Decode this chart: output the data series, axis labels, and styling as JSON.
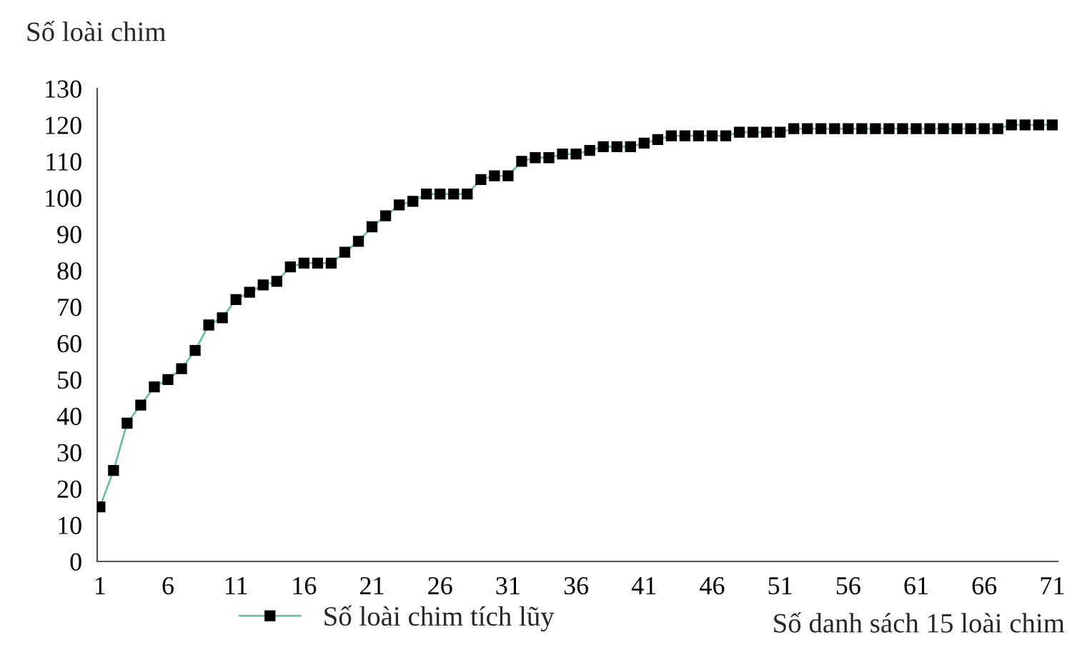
{
  "chart_data": {
    "type": "line",
    "ylabel": "Số loài chim",
    "xlabel": "Số danh sách 15 loài chim",
    "categories": [
      "1",
      null,
      null,
      null,
      null,
      "6",
      null,
      null,
      null,
      null,
      "11",
      null,
      null,
      null,
      null,
      "16",
      null,
      null,
      null,
      null,
      "21",
      null,
      null,
      null,
      null,
      "26",
      null,
      null,
      null,
      null,
      "31",
      null,
      null,
      null,
      null,
      "36",
      null,
      null,
      null,
      null,
      "41",
      null,
      null,
      null,
      null,
      "46",
      null,
      null,
      null,
      null,
      "51",
      null,
      null,
      null,
      null,
      "56",
      null,
      null,
      null,
      null,
      "61",
      null,
      null,
      null,
      null,
      "66",
      null,
      null,
      null,
      null,
      "71"
    ],
    "series": [
      {
        "name": "Số loài chim tích lũy",
        "color": "#6fbf9f",
        "values": [
          15,
          25,
          38,
          43,
          48,
          50,
          53,
          58,
          65,
          67,
          72,
          74,
          76,
          77,
          81,
          82,
          82,
          82,
          85,
          88,
          92,
          95,
          98,
          99,
          101,
          101,
          101,
          101,
          105,
          106,
          106,
          110,
          111,
          111,
          112,
          112,
          113,
          114,
          114,
          114,
          115,
          116,
          117,
          117,
          117,
          117,
          117,
          118,
          118,
          118,
          118,
          119,
          119,
          119,
          119,
          119,
          119,
          119,
          119,
          119,
          119,
          119,
          119,
          119,
          119,
          119,
          119,
          120,
          120,
          120,
          120
        ]
      }
    ],
    "ylim": [
      0,
      130
    ],
    "yticks": [
      0,
      10,
      20,
      30,
      40,
      50,
      60,
      70,
      80,
      90,
      100,
      110,
      120,
      130
    ],
    "marker": "square",
    "line_style": "solid",
    "legend": "bottom",
    "grid": false
  }
}
